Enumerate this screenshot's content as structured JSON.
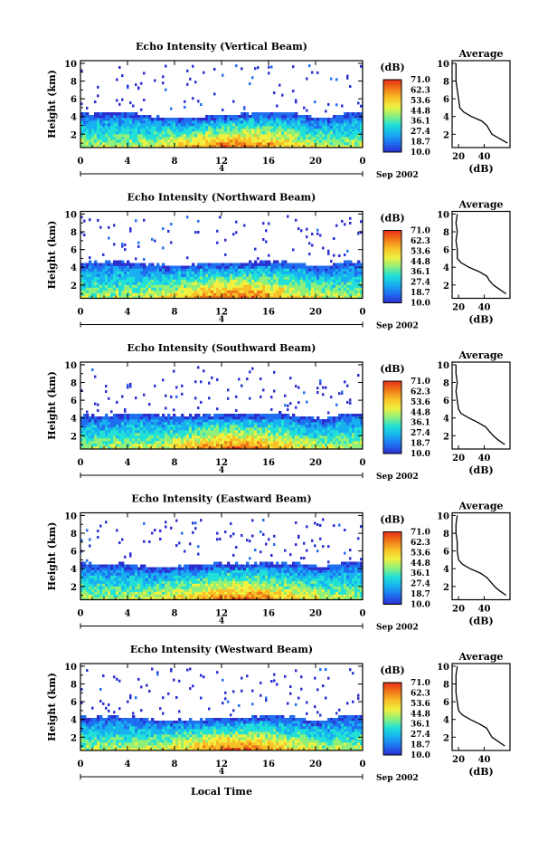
{
  "chart_data": {
    "type": "heatmap",
    "colorbar": {
      "unit": "(dB)",
      "ticks": [
        "71.0",
        "62.3",
        "53.6",
        "44.8",
        "36.1",
        "27.4",
        "18.7",
        "10.0"
      ],
      "range": [
        10.0,
        71.0
      ],
      "colors": [
        "#2b2fd0",
        "#1f6ff0",
        "#18b0f0",
        "#20e0d8",
        "#8ef07a",
        "#f0f040",
        "#f8c028",
        "#f07818",
        "#e83018"
      ]
    },
    "x_ticks": [
      "0",
      "4",
      "8",
      "12",
      "16",
      "20",
      "0"
    ],
    "y_ticks": [
      "2",
      "4",
      "6",
      "8",
      "10"
    ],
    "ylabel": "Height (km)",
    "date_label": "4",
    "month_label": "Sep 2002",
    "xlabel": "Local Time",
    "avg_title": "Average",
    "avg_xticks": [
      "20",
      "40"
    ],
    "avg_xlabel": "(dB)",
    "panels": [
      {
        "title": "Echo Intensity (Vertical Beam)",
        "top_km": [
          4.3,
          4.2,
          4.4,
          4.1,
          3.8,
          3.7,
          3.9,
          4.0,
          4.2,
          4.4,
          4.3,
          4.1,
          3.6,
          4.2,
          4.3
        ],
        "avg_profile": [
          [
            58,
            1
          ],
          [
            52,
            1.5
          ],
          [
            46,
            2
          ],
          [
            44,
            2.5
          ],
          [
            42,
            3
          ],
          [
            38,
            3.5
          ],
          [
            30,
            4
          ],
          [
            24,
            4.5
          ],
          [
            21,
            5
          ],
          [
            20,
            6
          ],
          [
            19,
            7
          ],
          [
            18,
            8
          ],
          [
            18,
            9
          ],
          [
            18,
            10
          ]
        ]
      },
      {
        "title": "Echo Intensity (Northward Beam)",
        "top_km": [
          4.5,
          4.4,
          4.5,
          4.3,
          4.1,
          4.0,
          4.3,
          4.4,
          4.4,
          4.6,
          4.5,
          4.3,
          3.9,
          4.5,
          4.5
        ],
        "avg_profile": [
          [
            57,
            1
          ],
          [
            52,
            1.5
          ],
          [
            47,
            2
          ],
          [
            44,
            2.5
          ],
          [
            42,
            3
          ],
          [
            36,
            3.5
          ],
          [
            28,
            4
          ],
          [
            22,
            4.5
          ],
          [
            19,
            5
          ],
          [
            19,
            6
          ],
          [
            18,
            7
          ],
          [
            19,
            8
          ],
          [
            18,
            9
          ],
          [
            19,
            10
          ]
        ]
      },
      {
        "title": "Echo Intensity (Southward Beam)",
        "top_km": [
          4.2,
          4.1,
          4.3,
          4.4,
          4.2,
          4.1,
          4.2,
          4.3,
          4.2,
          4.3,
          4.4,
          4.1,
          3.7,
          4.3,
          4.4
        ],
        "avg_profile": [
          [
            56,
            1
          ],
          [
            51,
            1.5
          ],
          [
            47,
            2
          ],
          [
            44,
            2.5
          ],
          [
            41,
            3
          ],
          [
            35,
            3.5
          ],
          [
            28,
            4
          ],
          [
            22,
            4.5
          ],
          [
            20,
            5
          ],
          [
            19,
            6
          ],
          [
            18,
            7
          ],
          [
            19,
            8
          ],
          [
            18,
            9
          ],
          [
            18,
            10
          ]
        ]
      },
      {
        "title": "Echo Intensity (Eastward Beam)",
        "top_km": [
          4.5,
          4.3,
          4.4,
          4.2,
          4.0,
          4.1,
          4.3,
          4.5,
          4.4,
          4.6,
          4.5,
          4.4,
          4.0,
          4.5,
          4.6
        ],
        "avg_profile": [
          [
            57,
            1
          ],
          [
            52,
            1.5
          ],
          [
            48,
            2
          ],
          [
            45,
            2.5
          ],
          [
            42,
            3
          ],
          [
            37,
            3.5
          ],
          [
            29,
            4
          ],
          [
            23,
            4.5
          ],
          [
            20,
            5
          ],
          [
            19,
            6
          ],
          [
            19,
            7
          ],
          [
            18,
            8
          ],
          [
            18,
            9
          ],
          [
            19,
            10
          ]
        ]
      },
      {
        "title": "Echo Intensity (Westward Beam)",
        "top_km": [
          4.2,
          4.1,
          4.2,
          4.0,
          3.7,
          3.8,
          3.9,
          4.1,
          4.0,
          4.3,
          4.2,
          4.0,
          3.6,
          4.3,
          4.3
        ],
        "avg_profile": [
          [
            56,
            1
          ],
          [
            51,
            1.5
          ],
          [
            46,
            2
          ],
          [
            44,
            2.5
          ],
          [
            42,
            3
          ],
          [
            36,
            3.5
          ],
          [
            29,
            4
          ],
          [
            23,
            4.5
          ],
          [
            20,
            5
          ],
          [
            19,
            6
          ],
          [
            18,
            7
          ],
          [
            18,
            8
          ],
          [
            18,
            9
          ],
          [
            19,
            10
          ]
        ]
      }
    ]
  }
}
